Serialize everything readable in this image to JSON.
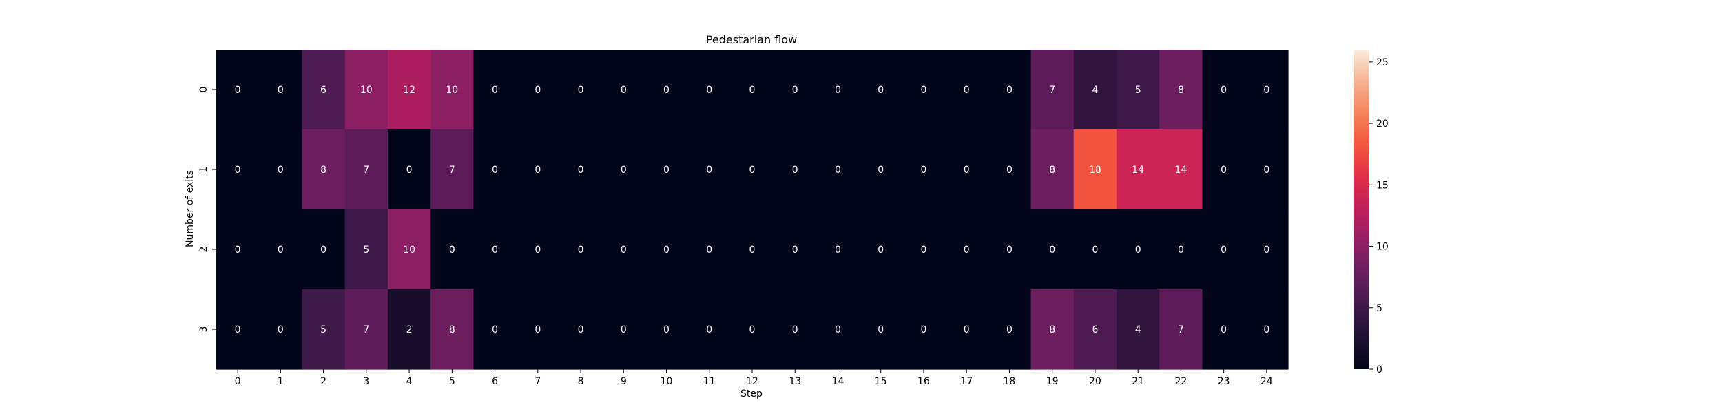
{
  "chart_data": {
    "type": "heatmap",
    "title": "Pedestarian flow",
    "xlabel": "Step",
    "ylabel": "Number of exits",
    "x": [
      "0",
      "1",
      "2",
      "3",
      "4",
      "5",
      "6",
      "7",
      "8",
      "9",
      "10",
      "11",
      "12",
      "13",
      "14",
      "15",
      "16",
      "17",
      "18",
      "19",
      "20",
      "21",
      "22",
      "23",
      "24"
    ],
    "y": [
      "0",
      "1",
      "2",
      "3"
    ],
    "values": [
      [
        0,
        0,
        6,
        10,
        12,
        10,
        0,
        0,
        0,
        0,
        0,
        0,
        0,
        0,
        0,
        0,
        0,
        0,
        0,
        7,
        4,
        5,
        8,
        0,
        0
      ],
      [
        0,
        0,
        8,
        7,
        0,
        7,
        0,
        0,
        0,
        0,
        0,
        0,
        0,
        0,
        0,
        0,
        0,
        0,
        0,
        8,
        18,
        14,
        14,
        0,
        0
      ],
      [
        0,
        0,
        0,
        5,
        10,
        0,
        0,
        0,
        0,
        0,
        0,
        0,
        0,
        0,
        0,
        0,
        0,
        0,
        0,
        0,
        0,
        0,
        0,
        0,
        0
      ],
      [
        0,
        0,
        5,
        7,
        2,
        8,
        0,
        0,
        0,
        0,
        0,
        0,
        0,
        0,
        0,
        0,
        0,
        0,
        0,
        8,
        6,
        4,
        7,
        0,
        0
      ]
    ],
    "colorbar": {
      "vmin": 0,
      "vmax": 26,
      "ticks": [
        0,
        5,
        10,
        15,
        20,
        25
      ],
      "colormap": "rocket"
    },
    "annotations": true,
    "annotation_color_light": "#ffffff",
    "annotation_color_dark": "#262626"
  }
}
